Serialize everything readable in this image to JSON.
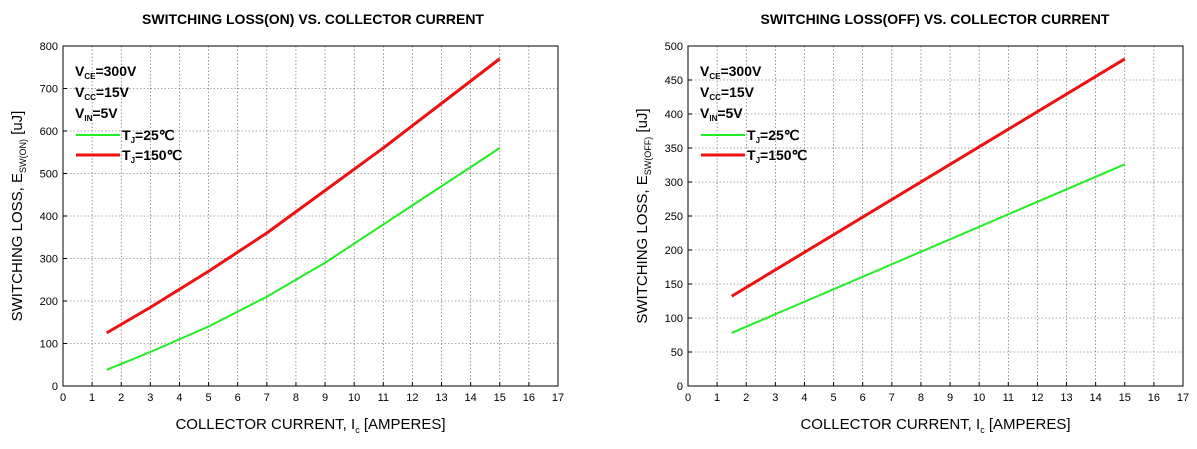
{
  "chart_data": [
    {
      "type": "line",
      "title": "SWITCHING LOSS(ON) VS. COLLECTOR CURRENT",
      "xlabel": {
        "main": "COLLECTOR CURRENT, I",
        "sub": "c",
        "unit": " [AMPERES]"
      },
      "ylabel": {
        "main": "SWITCHING LOSS, E",
        "sub": "SW(ON)",
        "unit": " [uJ]"
      },
      "xlim": [
        0,
        17
      ],
      "ylim": [
        0,
        800
      ],
      "xticks": [
        "0",
        "1",
        "2",
        "3",
        "4",
        "5",
        "6",
        "7",
        "8",
        "9",
        "10",
        "11",
        "12",
        "13",
        "14",
        "15",
        "16",
        "17"
      ],
      "yticks": [
        "0",
        "100",
        "200",
        "300",
        "400",
        "500",
        "600",
        "700",
        "800"
      ],
      "grid": true,
      "conditions": [
        {
          "main": "V",
          "sub": "CE",
          "rest": "=300V"
        },
        {
          "main": "V",
          "sub": "CC",
          "rest": "=15V"
        },
        {
          "main": "V",
          "sub": "IN",
          "rest": "=5V"
        }
      ],
      "legend_position": "top-left",
      "series": [
        {
          "label_main": "T",
          "label_sub": "J",
          "label_rest": "=25℃",
          "color": "#22ee22",
          "x": [
            1.5,
            3,
            5,
            7,
            9,
            11,
            13,
            15
          ],
          "y": [
            38,
            80,
            140,
            210,
            290,
            380,
            470,
            560
          ]
        },
        {
          "label_main": "T",
          "label_sub": "J",
          "label_rest": "=150℃",
          "color": "#ee1111",
          "x": [
            1.5,
            3,
            5,
            7,
            9,
            11,
            13,
            15
          ],
          "y": [
            125,
            185,
            270,
            360,
            460,
            560,
            665,
            770
          ]
        }
      ]
    },
    {
      "type": "line",
      "title": "SWITCHING LOSS(OFF) VS. COLLECTOR CURRENT",
      "xlabel": {
        "main": "COLLECTOR CURRENT, I",
        "sub": "c",
        "unit": " [AMPERES]"
      },
      "ylabel": {
        "main": "SWITCHING LOSS, E",
        "sub": "SW(OFF)",
        "unit": " [uJ]"
      },
      "xlim": [
        0,
        17
      ],
      "ylim": [
        0,
        500
      ],
      "xticks": [
        "0",
        "1",
        "2",
        "3",
        "4",
        "5",
        "6",
        "7",
        "8",
        "9",
        "10",
        "11",
        "12",
        "13",
        "14",
        "15",
        "16",
        "17"
      ],
      "yticks": [
        "0",
        "50",
        "100",
        "150",
        "200",
        "250",
        "300",
        "350",
        "400",
        "450",
        "500"
      ],
      "grid": true,
      "conditions": [
        {
          "main": "V",
          "sub": "CE",
          "rest": "=300V"
        },
        {
          "main": "V",
          "sub": "CC",
          "rest": "=15V"
        },
        {
          "main": "V",
          "sub": "IN",
          "rest": "=5V"
        }
      ],
      "legend_position": "top-left",
      "series": [
        {
          "label_main": "T",
          "label_sub": "J",
          "label_rest": "=25℃",
          "color": "#22ee22",
          "x": [
            1.5,
            15
          ],
          "y": [
            78,
            326
          ]
        },
        {
          "label_main": "T",
          "label_sub": "J",
          "label_rest": "=150℃",
          "color": "#ee1111",
          "x": [
            1.5,
            15
          ],
          "y": [
            132,
            481
          ]
        }
      ]
    }
  ]
}
